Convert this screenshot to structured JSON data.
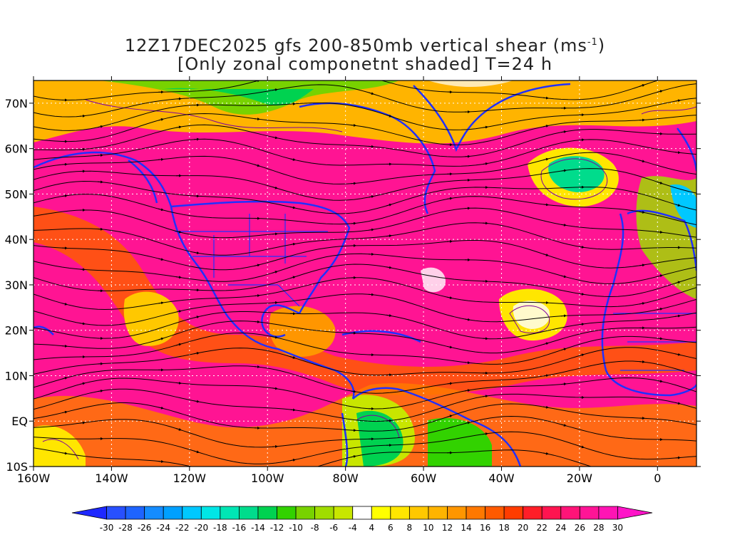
{
  "title": {
    "line1_prefix": "12Z17DEC2025 gfs 200-850mb vertical shear (ms",
    "line1_sup": "-1",
    "line1_suffix": ")",
    "line2": "[Only zonal componetnt shaded] T=24 h"
  },
  "map": {
    "lon_range": [
      -160,
      10
    ],
    "lat_range": [
      -10,
      75
    ],
    "lon_ticks": [
      {
        "value": -160,
        "label": "160W"
      },
      {
        "value": -140,
        "label": "140W"
      },
      {
        "value": -120,
        "label": "120W"
      },
      {
        "value": -100,
        "label": "100W"
      },
      {
        "value": -80,
        "label": "80W"
      },
      {
        "value": -60,
        "label": "60W"
      },
      {
        "value": -40,
        "label": "40W"
      },
      {
        "value": -20,
        "label": "20W"
      },
      {
        "value": 0,
        "label": "0"
      }
    ],
    "lat_ticks": [
      {
        "value": -10,
        "label": "10S"
      },
      {
        "value": 0,
        "label": "EQ"
      },
      {
        "value": 10,
        "label": "10N"
      },
      {
        "value": 20,
        "label": "20N"
      },
      {
        "value": 30,
        "label": "30N"
      },
      {
        "value": 40,
        "label": "40N"
      },
      {
        "value": 50,
        "label": "50N"
      },
      {
        "value": 60,
        "label": "60N"
      },
      {
        "value": 70,
        "label": "70N"
      }
    ],
    "background_color": "#ff1493",
    "coastline_color": "#2030ff",
    "streamline_color": "#000000",
    "contour_color": "#8000a0",
    "gridline_color": "#ffffff"
  },
  "colorbar": {
    "labels": [
      "-30",
      "-28",
      "-26",
      "-24",
      "-22",
      "-20",
      "-18",
      "-16",
      "-14",
      "-12",
      "-10",
      "-8",
      "-6",
      "-4",
      "4",
      "6",
      "8",
      "10",
      "12",
      "14",
      "16",
      "18",
      "20",
      "22",
      "24",
      "26",
      "28",
      "30"
    ],
    "colors": [
      "#1e28ff",
      "#2850ff",
      "#1e64ff",
      "#148cff",
      "#00a0ff",
      "#00c8ff",
      "#00e6e6",
      "#00e6b4",
      "#00dc8c",
      "#00d250",
      "#32d200",
      "#78d200",
      "#a0dc00",
      "#c8e600",
      "#ffffff",
      "#ffff00",
      "#ffe600",
      "#ffc800",
      "#ffb400",
      "#ff9600",
      "#ff7800",
      "#ff5a00",
      "#ff3c00",
      "#ff1e28",
      "#ff1450",
      "#ff1478",
      "#ff1496",
      "#ff14b4",
      "#ff14c8"
    ]
  }
}
